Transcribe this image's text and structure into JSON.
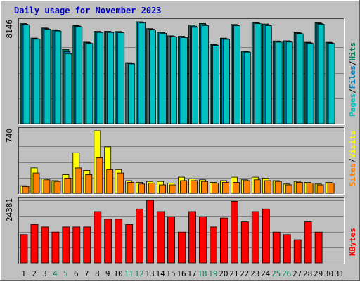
{
  "chart_data": {
    "title": "Daily usage for November 2023",
    "colors": {
      "background": "#c0c0c0",
      "plot_bg": "#c0c0c0",
      "title": "#0000c0",
      "axis_text": "#000000",
      "pages": "#00c0c0",
      "files": "#0080c0",
      "hits": "#00805c",
      "visits": "#ffff00",
      "sites": "#ff8000",
      "kbytes": "#ff0000",
      "weekend_day": "#00805c",
      "weekday": "#000000"
    },
    "x": [
      "1",
      "2",
      "3",
      "4",
      "5",
      "6",
      "7",
      "8",
      "9",
      "10",
      "11",
      "12",
      "13",
      "14",
      "15",
      "16",
      "17",
      "18",
      "19",
      "20",
      "21",
      "22",
      "23",
      "24",
      "25",
      "26",
      "27",
      "28",
      "29",
      "30",
      "31"
    ],
    "weekend_days": [
      "4",
      "5",
      "11",
      "12",
      "18",
      "19",
      "25",
      "26"
    ],
    "panels": [
      {
        "type": "bar",
        "ymax_label": "8146",
        "ymax": 8146,
        "legend": [
          "Pages",
          "/",
          "Files",
          "/",
          "Hits"
        ],
        "series": [
          {
            "name": "Hits",
            "values": [
              8000,
              6850,
              7650,
              7510,
              5940,
              7850,
              6520,
              7380,
              7390,
              7370,
              4880,
              8146,
              7600,
              7330,
              7030,
              6990,
              7890,
              8010,
              6360,
              6840,
              7930,
              5800,
              8100,
              7970,
              6620,
              6630,
              7290,
              6510,
              8060,
              6510,
              null
            ]
          },
          {
            "name": "Files",
            "values": [
              7950,
              6800,
              7600,
              7460,
              5760,
              7800,
              6470,
              7330,
              7340,
              7320,
              4830,
              8100,
              7550,
              7280,
              6980,
              6940,
              7800,
              7920,
              6310,
              6790,
              7880,
              5760,
              8050,
              7900,
              6570,
              6580,
              7240,
              6460,
              8000,
              6460,
              null
            ]
          },
          {
            "name": "Pages",
            "values": [
              7900,
              6750,
              7550,
              7410,
              5600,
              7750,
              6420,
              7290,
              7290,
              7270,
              4780,
              8050,
              7500,
              7230,
              6930,
              6890,
              7710,
              7840,
              6260,
              6740,
              7830,
              5720,
              8000,
              7830,
              6520,
              6530,
              7190,
              6410,
              7950,
              6410,
              null
            ]
          }
        ]
      },
      {
        "type": "bar",
        "ymax_label": "740",
        "ymax": 740,
        "legend": [
          "Sites",
          "/",
          "Visits"
        ],
        "series": [
          {
            "name": "Visits",
            "values": [
              90,
              300,
              170,
              150,
              220,
              480,
              270,
              740,
              550,
              280,
              150,
              130,
              140,
              140,
              120,
              190,
              170,
              160,
              130,
              150,
              190,
              160,
              190,
              180,
              150,
              110,
              140,
              130,
              110,
              130,
              null
            ]
          },
          {
            "name": "Sites",
            "values": [
              80,
              240,
              160,
              140,
              180,
              300,
              220,
              420,
              280,
              240,
              130,
              110,
              120,
              100,
              100,
              150,
              150,
              140,
              120,
              130,
              130,
              150,
              160,
              150,
              140,
              100,
              130,
              120,
              100,
              120,
              null
            ]
          }
        ]
      },
      {
        "type": "bar",
        "ymax_label": "24381",
        "ymax": 24381,
        "legend": [
          "KBytes"
        ],
        "series": [
          {
            "name": "KBytes",
            "values": [
              11000,
              15000,
              14000,
              12000,
              14000,
              14000,
              14000,
              20000,
              17000,
              17000,
              15000,
              21000,
              24381,
              20000,
              18000,
              12000,
              20000,
              18000,
              14000,
              17500,
              24000,
              16000,
              20000,
              21000,
              12000,
              11000,
              9000,
              16000,
              12000,
              null,
              null
            ]
          }
        ]
      }
    ]
  }
}
